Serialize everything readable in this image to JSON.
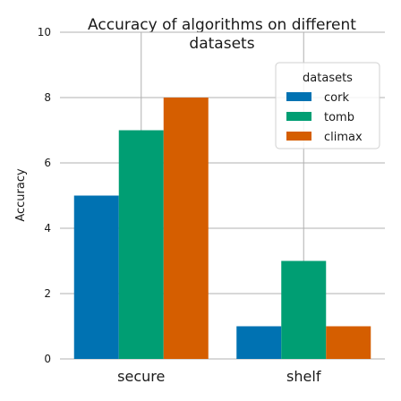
{
  "chart_data": {
    "type": "bar",
    "title_lines": [
      "Accuracy of algorithms on different",
      "datasets"
    ],
    "xlabel": "",
    "ylabel": "Accuracy",
    "categories": [
      "secure",
      "shelf"
    ],
    "series": [
      {
        "name": "cork",
        "color": "#0072b2",
        "values": [
          5,
          1
        ]
      },
      {
        "name": "tomb",
        "color": "#009e73",
        "values": [
          7,
          3
        ]
      },
      {
        "name": "climax",
        "color": "#d55e00",
        "values": [
          8,
          1
        ]
      }
    ],
    "ylim": [
      0,
      10
    ],
    "yticks": [
      0,
      2,
      4,
      6,
      8,
      10
    ],
    "grid": true,
    "legend": {
      "title": "datasets",
      "placement": "top-right"
    }
  }
}
